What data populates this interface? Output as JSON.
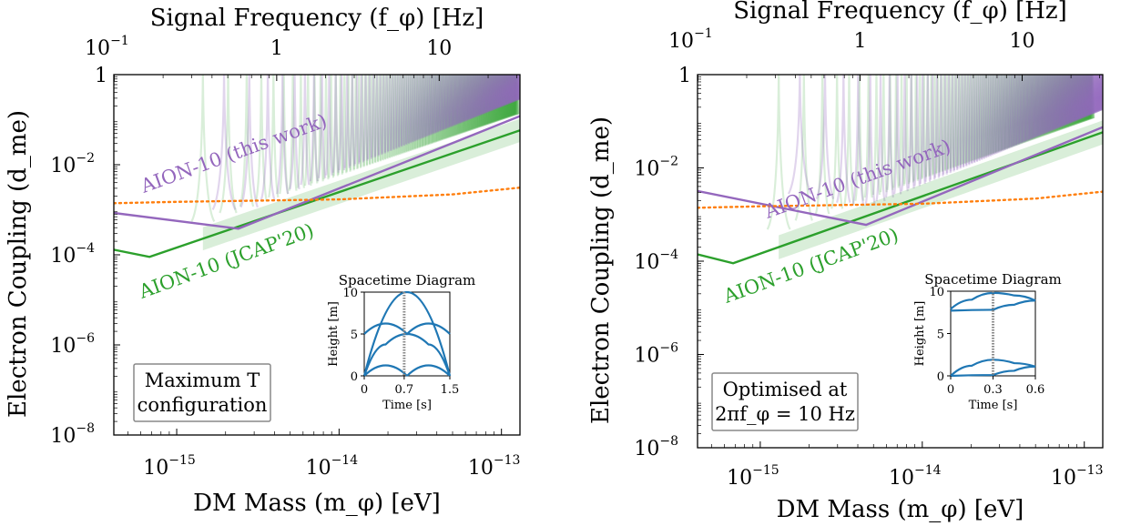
{
  "chart_data": [
    {
      "type": "line",
      "xlabel": "DM Mass (m_φ) [eV]",
      "ylabel": "Electron Coupling (d_me)",
      "top_xlabel": "Signal Frequency (f_φ) [Hz]",
      "xscale": "log",
      "yscale": "log",
      "xlim": [
        4.1e-16,
        1.3e-13
      ],
      "ylim": [
        1e-08,
        1
      ],
      "top_xlim": [
        0.0995,
        31.4
      ],
      "x_ticks": [
        1e-15,
        1e-14,
        1e-13
      ],
      "x_tick_labels": [
        {
          "base": "10",
          "exp": "−15"
        },
        {
          "base": "10",
          "exp": "−14"
        },
        {
          "base": "10",
          "exp": "−13"
        }
      ],
      "y_ticks": [
        1e-08,
        1e-06,
        0.0001,
        0.01,
        1
      ],
      "y_tick_labels": [
        {
          "base": "10",
          "exp": "−8"
        },
        {
          "base": "10",
          "exp": "−6"
        },
        {
          "base": "10",
          "exp": "−4"
        },
        {
          "base": "10",
          "exp": "−2"
        },
        {
          "base": "1",
          "exp": ""
        }
      ],
      "top_ticks": [
        0.1,
        1,
        10
      ],
      "top_tick_labels": [
        {
          "base": "10",
          "exp": "−1"
        },
        {
          "base": "1",
          "exp": ""
        },
        {
          "base": "10",
          "exp": ""
        }
      ],
      "series": [
        {
          "name": "AION-10 (this work)",
          "color": "#9467bd",
          "envelope_x": [
            4.1e-16,
            2.4e-15,
            1.3e-13
          ],
          "envelope_y": [
            0.00085,
            0.00038,
            0.12
          ]
        },
        {
          "name": "AION-10 (JCAP'20)",
          "color": "#2ca02c",
          "envelope_x": [
            4.1e-16,
            6.8e-16,
            1.3e-13
          ],
          "envelope_y": [
            0.00013,
            9e-05,
            0.058
          ]
        },
        {
          "color": "#ff7f0e",
          "style": "dotted",
          "x": [
            4.1e-16,
            1e-15,
            1e-14,
            5e-14,
            1.3e-13
          ],
          "y": [
            0.0014,
            0.0015,
            0.0017,
            0.0022,
            0.0031
          ]
        }
      ],
      "excluded_region_color": "#fbe4d1",
      "resonance_start": 1.45e-15,
      "annotation": [
        "Maximum T",
        "configuration"
      ],
      "inset": {
        "title": "Spacetime Diagram",
        "xlabel": "Time [s]",
        "ylabel": "Height [m]",
        "xlim": [
          0,
          1.5
        ],
        "ylim": [
          0,
          10
        ],
        "x_ticks": [
          0,
          0.7,
          1.5
        ],
        "y_ticks": [
          0,
          5,
          10
        ],
        "x_tick_labels": [
          "0",
          "0.7",
          "1.5"
        ],
        "y_tick_labels": [
          "0",
          "5",
          "10"
        ],
        "vline_x": 0.7,
        "arcs": [
          {
            "t": [
              0,
              0.75,
              1.5
            ],
            "h": [
              0,
              10,
              0
            ]
          },
          {
            "t": [
              0,
              0.375,
              0.75,
              1.125,
              1.5
            ],
            "h": [
              5,
              6.25,
              5,
              6.25,
              5
            ]
          },
          {
            "t": [
              0,
              0.375,
              0.75
            ],
            "h": [
              0,
              1.25,
              0
            ]
          },
          {
            "t": [
              0.75,
              1.125,
              1.5
            ],
            "h": [
              0,
              1.25,
              0
            ]
          },
          {
            "t": [
              0,
              0.375,
              0.75
            ],
            "h": [
              0,
              3.75,
              5
            ]
          },
          {
            "t": [
              0.75,
              1.125,
              1.5
            ],
            "h": [
              5,
              3.75,
              0
            ]
          }
        ]
      }
    },
    {
      "type": "line",
      "xlabel": "DM Mass (m_φ) [eV]",
      "ylabel": "Electron Coupling (d_me)",
      "top_xlabel": "Signal Frequency (f_φ) [Hz]",
      "xscale": "log",
      "yscale": "log",
      "xlim": [
        4.1e-16,
        1.3e-13
      ],
      "ylim": [
        1e-08,
        1
      ],
      "top_xlim": [
        0.0995,
        31.4
      ],
      "x_ticks": [
        1e-15,
        1e-14,
        1e-13
      ],
      "x_tick_labels": [
        {
          "base": "10",
          "exp": "−15"
        },
        {
          "base": "10",
          "exp": "−14"
        },
        {
          "base": "10",
          "exp": "−13"
        }
      ],
      "y_ticks": [
        1e-08,
        1e-06,
        0.0001,
        0.01,
        1
      ],
      "y_tick_labels": [
        {
          "base": "10",
          "exp": "−8"
        },
        {
          "base": "10",
          "exp": "−6"
        },
        {
          "base": "10",
          "exp": "−4"
        },
        {
          "base": "10",
          "exp": "−2"
        },
        {
          "base": "1",
          "exp": ""
        }
      ],
      "top_ticks": [
        0.1,
        1,
        10
      ],
      "top_tick_labels": [
        {
          "base": "10",
          "exp": "−1"
        },
        {
          "base": "1",
          "exp": ""
        },
        {
          "base": "10",
          "exp": ""
        }
      ],
      "series": [
        {
          "name": "AION-10 (this work)",
          "color": "#9467bd",
          "envelope_x": [
            4.1e-16,
            4.5e-15,
            1.3e-13
          ],
          "envelope_y": [
            0.0032,
            0.0006,
            0.075
          ]
        },
        {
          "name": "AION-10 (JCAP'20)",
          "color": "#2ca02c",
          "envelope_x": [
            4.1e-16,
            6.8e-16,
            1.3e-13
          ],
          "envelope_y": [
            0.00014,
            9e-05,
            0.058
          ]
        },
        {
          "color": "#ff7f0e",
          "style": "dotted",
          "x": [
            4.1e-16,
            1e-15,
            1e-14,
            5e-14,
            1.3e-13
          ],
          "y": [
            0.0014,
            0.0015,
            0.0017,
            0.0022,
            0.0031
          ]
        }
      ],
      "excluded_region_color": "#fbe4d1",
      "resonance_start": 1.3e-15,
      "annotation": [
        "Optimised at",
        "2πf_φ = 10 Hz"
      ],
      "inset": {
        "title": "Spacetime Diagram",
        "xlabel": "Time [s]",
        "ylabel": "Height [m]",
        "xlim": [
          0,
          0.6
        ],
        "ylim": [
          0,
          10
        ],
        "x_ticks": [
          0,
          0.3,
          0.6
        ],
        "y_ticks": [
          0,
          5,
          10
        ],
        "x_tick_labels": [
          "0",
          "0.3",
          "0.6"
        ],
        "y_tick_labels": [
          "0",
          "5",
          "10"
        ],
        "vline_x": 0.3,
        "arcs": [
          {
            "t": [
              0,
              0.3
            ],
            "h": [
              7.7,
              7.8
            ]
          },
          {
            "t": [
              0,
              0.15,
              0.3,
              0.45,
              0.6
            ],
            "h": [
              7.9,
              9,
              9.8,
              9.5,
              8.9
            ]
          },
          {
            "t": [
              0.3,
              0.45,
              0.6
            ],
            "h": [
              7.8,
              8.4,
              8.9
            ]
          },
          {
            "t": [
              0,
              0.15,
              0.3,
              0.45,
              0.6
            ],
            "h": [
              0,
              1.2,
              1.9,
              1.5,
              1.1
            ]
          },
          {
            "t": [
              0,
              0.3,
              0.45,
              0.6
            ],
            "h": [
              0,
              0.1,
              0.6,
              1.1
            ]
          }
        ]
      }
    }
  ]
}
